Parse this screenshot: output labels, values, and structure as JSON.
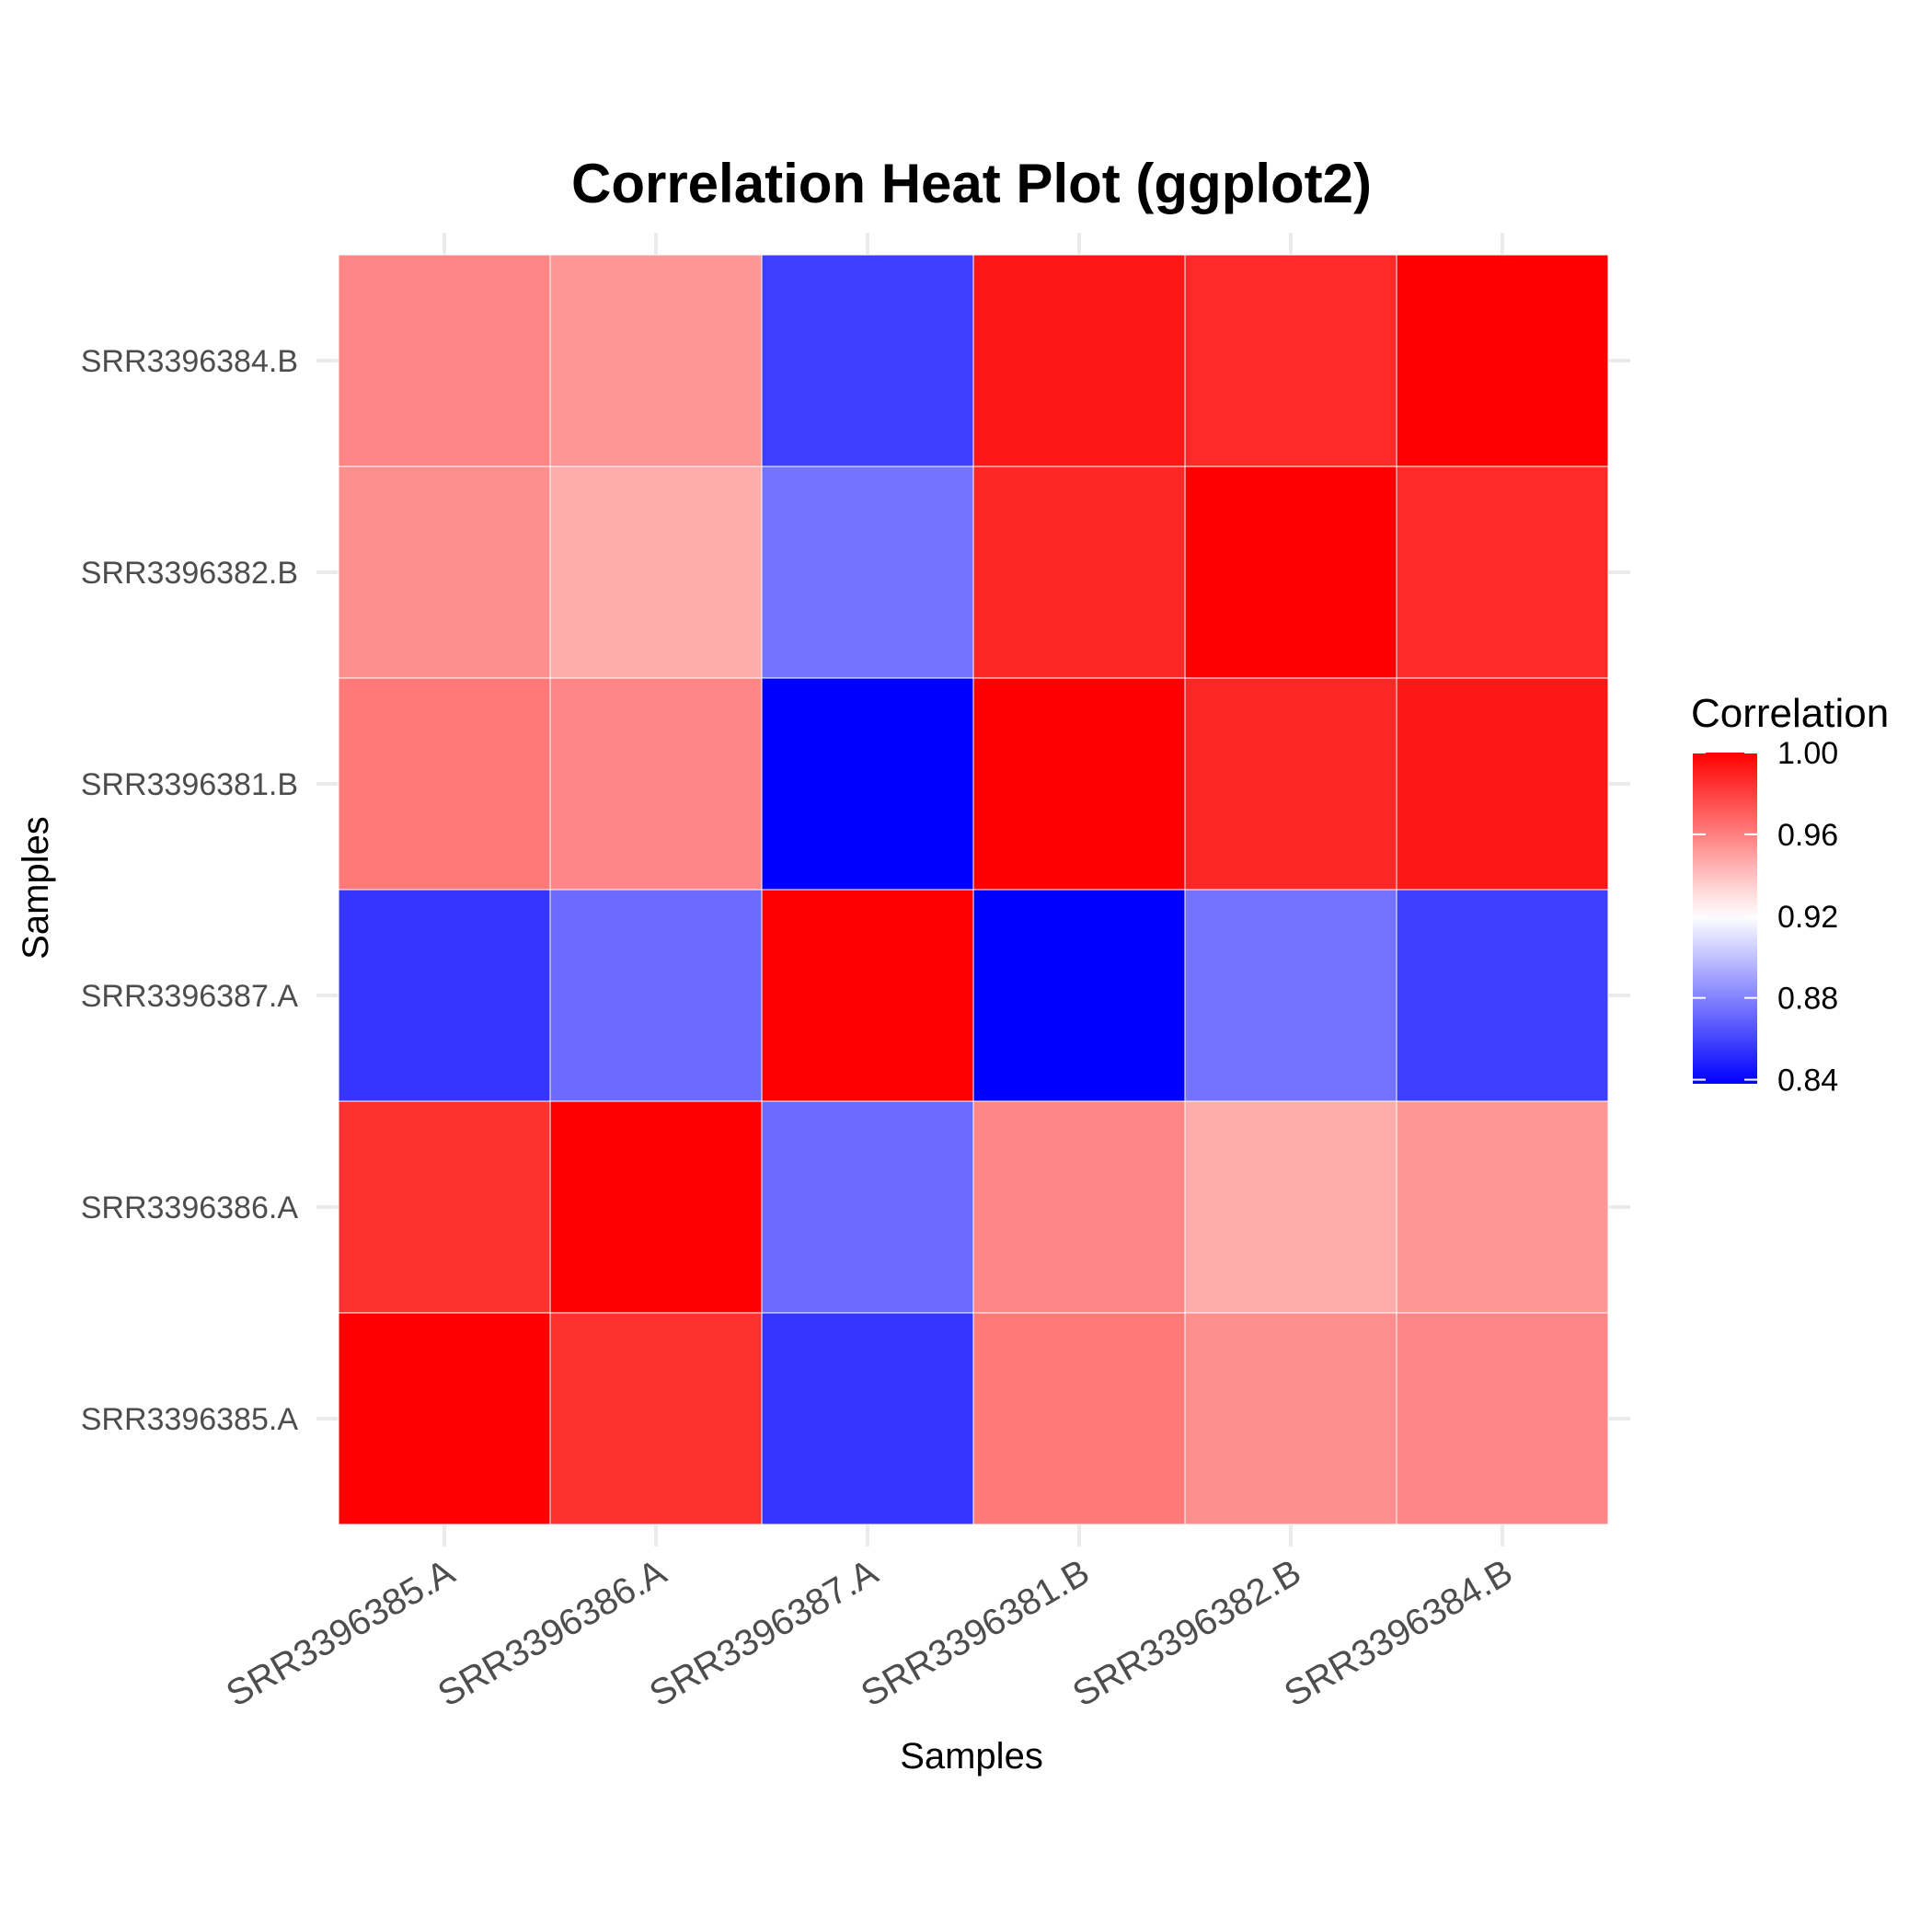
{
  "chart_data": {
    "type": "heatmap",
    "title": "Correlation Heat Plot (ggplot2)",
    "xlabel": "Samples",
    "ylabel": "Samples",
    "x_categories": [
      "SRR3396385.A",
      "SRR3396386.A",
      "SRR3396387.A",
      "SRR3396381.B",
      "SRR3396382.B",
      "SRR3396384.B"
    ],
    "y_categories": [
      "SRR3396385.A",
      "SRR3396386.A",
      "SRR3396387.A",
      "SRR3396381.B",
      "SRR3396382.B",
      "SRR3396384.B"
    ],
    "values": [
      [
        1.0,
        0.985,
        0.855,
        0.962,
        0.955,
        0.958
      ],
      [
        0.985,
        1.0,
        0.872,
        0.958,
        0.946,
        0.953
      ],
      [
        0.855,
        0.872,
        1.0,
        0.838,
        0.875,
        0.858
      ],
      [
        0.962,
        0.958,
        0.838,
        1.0,
        0.988,
        0.993
      ],
      [
        0.955,
        0.946,
        0.875,
        0.988,
        1.0,
        0.987
      ],
      [
        0.958,
        0.953,
        0.858,
        0.993,
        0.987,
        1.0
      ]
    ],
    "color_scale": {
      "low": "#0000ff",
      "mid": "#ffffff",
      "high": "#ff0000",
      "midpoint": 0.92,
      "range": [
        0.838,
        1.0
      ]
    },
    "legend": {
      "title": "Correlation",
      "breaks": [
        "1.00",
        "0.96",
        "0.92",
        "0.88",
        "0.84"
      ],
      "break_values": [
        1.0,
        0.96,
        0.92,
        0.88,
        0.84
      ],
      "position": "right"
    },
    "grid": true
  }
}
